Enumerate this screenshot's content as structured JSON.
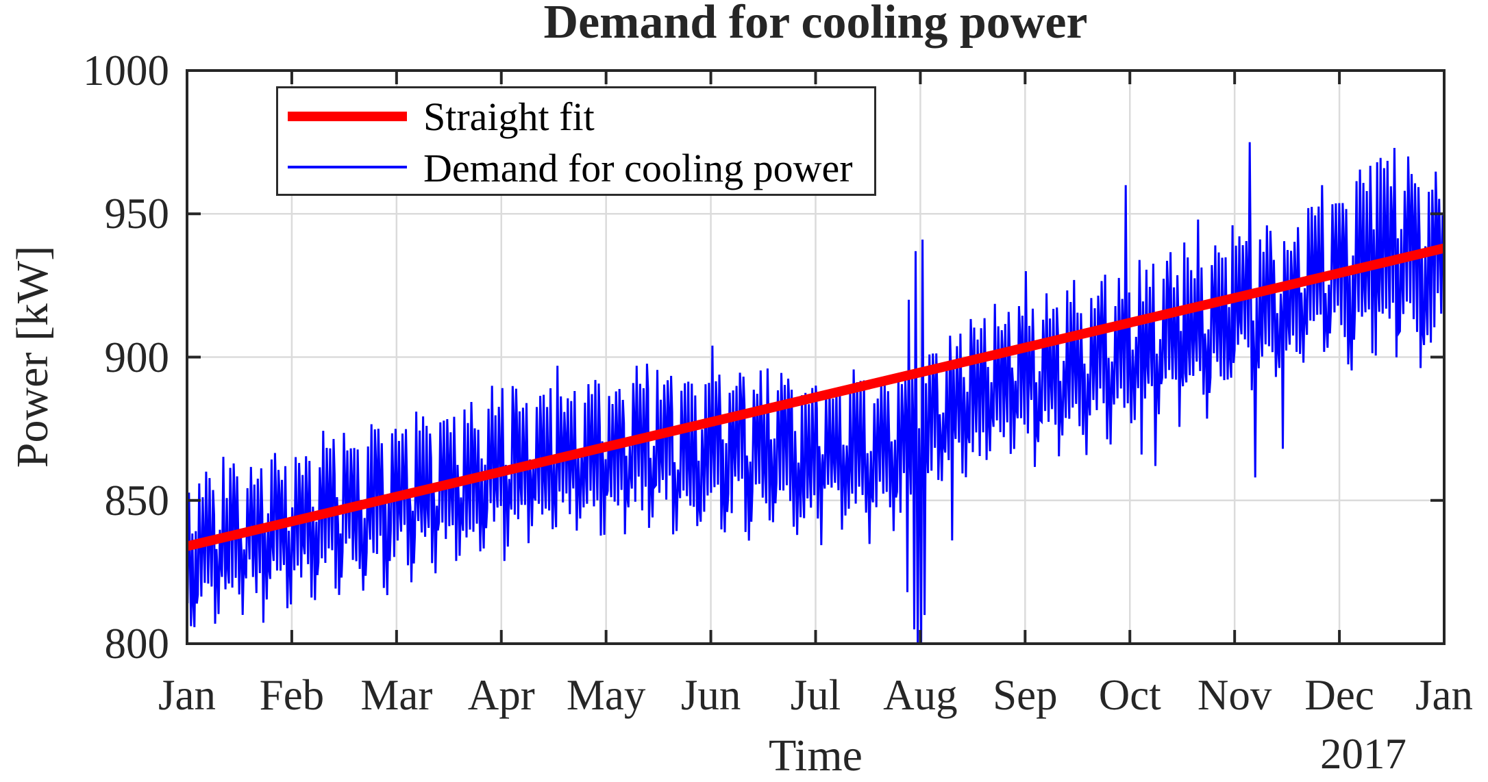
{
  "chart_data": {
    "type": "line",
    "title": "Demand for cooling power",
    "xlabel": "Time",
    "ylabel": "Power [kW]",
    "year_label": "2017",
    "ylim": [
      800,
      1000
    ],
    "y_ticks": [
      800,
      850,
      900,
      950,
      1000
    ],
    "x_tick_labels": [
      "Jan",
      "Feb",
      "Mar",
      "Apr",
      "May",
      "Jun",
      "Jul",
      "Aug",
      "Sep",
      "Oct",
      "Nov",
      "Dec",
      "Jan"
    ],
    "grid": true,
    "legend_position": "top-left-inside",
    "axis_color": "#262626",
    "grid_color": "#dbdbdb",
    "background_color": "#ffffff",
    "series": [
      {
        "name": "Straight fit",
        "type": "linear_fit",
        "color": "#ff0000",
        "line_width": 14,
        "x_days": [
          0,
          365
        ],
        "values_kw": [
          834,
          938
        ]
      },
      {
        "name": "Demand for cooling power",
        "type": "daily_demand",
        "color": "#0000ff",
        "line_width": 3,
        "days_in_year": 365,
        "seed": 20177,
        "mean_anchors_day_kw": [
          [
            0,
            833
          ],
          [
            15,
            838
          ],
          [
            45,
            846
          ],
          [
            75,
            856
          ],
          [
            105,
            866
          ],
          [
            135,
            869
          ],
          [
            166,
            868
          ],
          [
            196,
            866
          ],
          [
            212,
            872
          ],
          [
            227,
            888
          ],
          [
            258,
            897
          ],
          [
            288,
            910
          ],
          [
            305,
            916
          ],
          [
            319,
            921
          ],
          [
            334,
            930
          ],
          [
            349,
            938
          ],
          [
            365,
            932
          ]
        ],
        "weekday_swing_kw": 38,
        "weekend_swing_kw": 27,
        "weekend_drop_kw": 14,
        "weekday_lift_kw": 3,
        "mean_jitter_kw": 5,
        "swing_jitter_kw": 7,
        "first_day_of_week_index": 4,
        "week_starts": "Mon",
        "december_boost": {
          "days": [
            337,
            362
          ],
          "extra_swing_kw": 10
        },
        "clip_min_kw": 800,
        "anomalies": [
          {
            "day": 88,
            "high": 890
          },
          {
            "day": 107,
            "high": 897
          },
          {
            "day": 130,
            "high": 897
          },
          {
            "day": 152,
            "high": 904
          },
          {
            "day": 168,
            "high": 896
          },
          {
            "day": 209,
            "high": 920,
            "low": 818
          },
          {
            "day": 211,
            "high": 937,
            "low": 805
          },
          {
            "day": 212,
            "low": 800
          },
          {
            "day": 213,
            "high": 941,
            "low": 800
          },
          {
            "day": 214,
            "low": 810
          },
          {
            "day": 222,
            "low": 836
          },
          {
            "day": 243,
            "high": 930
          },
          {
            "day": 272,
            "high": 960
          },
          {
            "day": 277,
            "low": 866
          },
          {
            "day": 281,
            "low": 862
          },
          {
            "day": 289,
            "high": 940
          },
          {
            "day": 293,
            "high": 948
          },
          {
            "day": 303,
            "high": 946
          },
          {
            "day": 308,
            "high": 975
          },
          {
            "day": 310,
            "low": 858
          },
          {
            "day": 318,
            "low": 868
          },
          {
            "day": 325,
            "high": 952
          },
          {
            "day": 329,
            "high": 960
          },
          {
            "day": 345,
            "high": 968
          },
          {
            "day": 350,
            "high": 973
          },
          {
            "day": 354,
            "high": 970
          }
        ]
      }
    ]
  }
}
